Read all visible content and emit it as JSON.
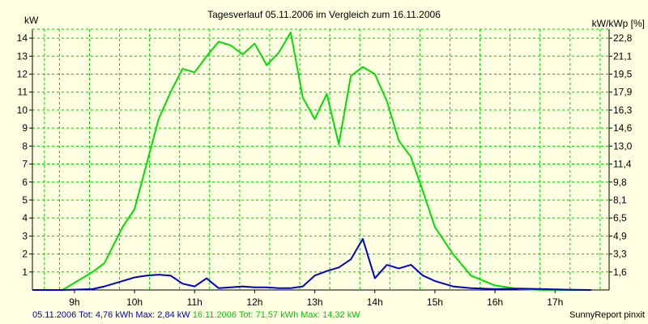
{
  "chart_data": {
    "type": "line",
    "title": "Tagesverlauf 05.11.2006 im Vergleich zum 16.11.2006",
    "ylabel_left": "kW",
    "ylabel_right": "kW/kWp [%]",
    "ylim": [
      0,
      14.5
    ],
    "xlim": [
      8.3,
      17.9
    ],
    "y_ticks_left": [
      1,
      2,
      3,
      4,
      5,
      6,
      7,
      8,
      9,
      10,
      11,
      12,
      13,
      14
    ],
    "y_ticks_right": [
      {
        "y": 1,
        "label": "1,6"
      },
      {
        "y": 2,
        "label": "3,3"
      },
      {
        "y": 3,
        "label": "4,9"
      },
      {
        "y": 4,
        "label": "6,5"
      },
      {
        "y": 5,
        "label": "8,1"
      },
      {
        "y": 6,
        "label": "9,8"
      },
      {
        "y": 7,
        "label": "11,4"
      },
      {
        "y": 8,
        "label": "13,0"
      },
      {
        "y": 9,
        "label": "14,6"
      },
      {
        "y": 10,
        "label": "16,3"
      },
      {
        "y": 11,
        "label": "17,9"
      },
      {
        "y": 12,
        "label": "19,5"
      },
      {
        "y": 13,
        "label": "21,1"
      },
      {
        "y": 14,
        "label": "22,8"
      }
    ],
    "x_ticks": [
      {
        "x": 9,
        "label": "9h"
      },
      {
        "x": 10,
        "label": "10h"
      },
      {
        "x": 11,
        "label": "11h"
      },
      {
        "x": 12,
        "label": "12h"
      },
      {
        "x": 13,
        "label": "13h"
      },
      {
        "x": 14,
        "label": "14h"
      },
      {
        "x": 15,
        "label": "15h"
      },
      {
        "x": 16,
        "label": "16h"
      },
      {
        "x": 17,
        "label": "17h"
      }
    ],
    "grid_y": [
      1,
      2,
      3,
      4,
      5,
      6,
      7,
      8,
      9,
      10,
      11,
      12,
      13,
      14
    ],
    "grid_x": [
      8.5,
      8.75,
      9.25,
      9.75,
      10.25,
      10.75,
      11.25,
      11.75,
      12.25,
      12.75,
      13.25,
      13.75,
      14.25,
      14.75,
      15.25,
      15.75,
      16.25,
      16.75,
      17.25,
      17.75
    ],
    "series": [
      {
        "name": "05.11.2006",
        "color": "#0000cc",
        "x": [
          8.3,
          8.8,
          9.0,
          9.3,
          9.5,
          9.8,
          10.0,
          10.2,
          10.4,
          10.6,
          10.8,
          11.0,
          11.2,
          11.4,
          11.6,
          11.8,
          12.0,
          12.2,
          12.4,
          12.6,
          12.8,
          13.0,
          13.2,
          13.4,
          13.6,
          13.8,
          14.0,
          14.2,
          14.4,
          14.6,
          14.8,
          15.0,
          15.3,
          15.6,
          16.0,
          16.4,
          16.8,
          17.2,
          17.6
        ],
        "y": [
          0,
          0,
          0.02,
          0.05,
          0.2,
          0.5,
          0.7,
          0.8,
          0.85,
          0.8,
          0.35,
          0.2,
          0.65,
          0.1,
          0.15,
          0.2,
          0.15,
          0.15,
          0.1,
          0.1,
          0.2,
          0.8,
          1.05,
          1.25,
          1.7,
          2.84,
          0.65,
          1.4,
          1.2,
          1.4,
          0.8,
          0.5,
          0.2,
          0.1,
          0.05,
          0.08,
          0.05,
          0.02,
          0
        ]
      },
      {
        "name": "16.11.2006",
        "color": "#00e000",
        "x": [
          8.3,
          8.8,
          9.0,
          9.3,
          9.5,
          9.8,
          10.0,
          10.2,
          10.4,
          10.6,
          10.8,
          11.0,
          11.2,
          11.4,
          11.6,
          11.8,
          12.0,
          12.2,
          12.4,
          12.6,
          12.8,
          13.0,
          13.2,
          13.4,
          13.6,
          13.8,
          14.0,
          14.2,
          14.4,
          14.6,
          14.8,
          15.0,
          15.3,
          15.6,
          16.0,
          16.4,
          16.8,
          17.2,
          17.6
        ],
        "y": [
          0,
          0,
          0.4,
          1.0,
          1.5,
          3.5,
          4.5,
          7.0,
          9.5,
          11.0,
          12.3,
          12.1,
          13.0,
          13.8,
          13.6,
          13.1,
          13.7,
          12.5,
          13.2,
          14.32,
          10.7,
          9.5,
          10.9,
          8.1,
          11.9,
          12.4,
          12.0,
          10.5,
          8.3,
          7.4,
          5.5,
          3.5,
          2.0,
          0.8,
          0.25,
          0.05,
          0,
          0,
          0
        ]
      }
    ]
  },
  "footer": {
    "series1_text": "05.11.2006 Tot: 4,76 kWh Max: 2,84 kW",
    "series2_text": "16.11.2006 Tot: 71,57 kWh Max: 14,32 kW",
    "credit": "SunnyReport pinxit"
  },
  "colors": {
    "background": "#ffffe1",
    "grid": "#00cc00",
    "series1": "#0000cc",
    "series2": "#00e000"
  }
}
